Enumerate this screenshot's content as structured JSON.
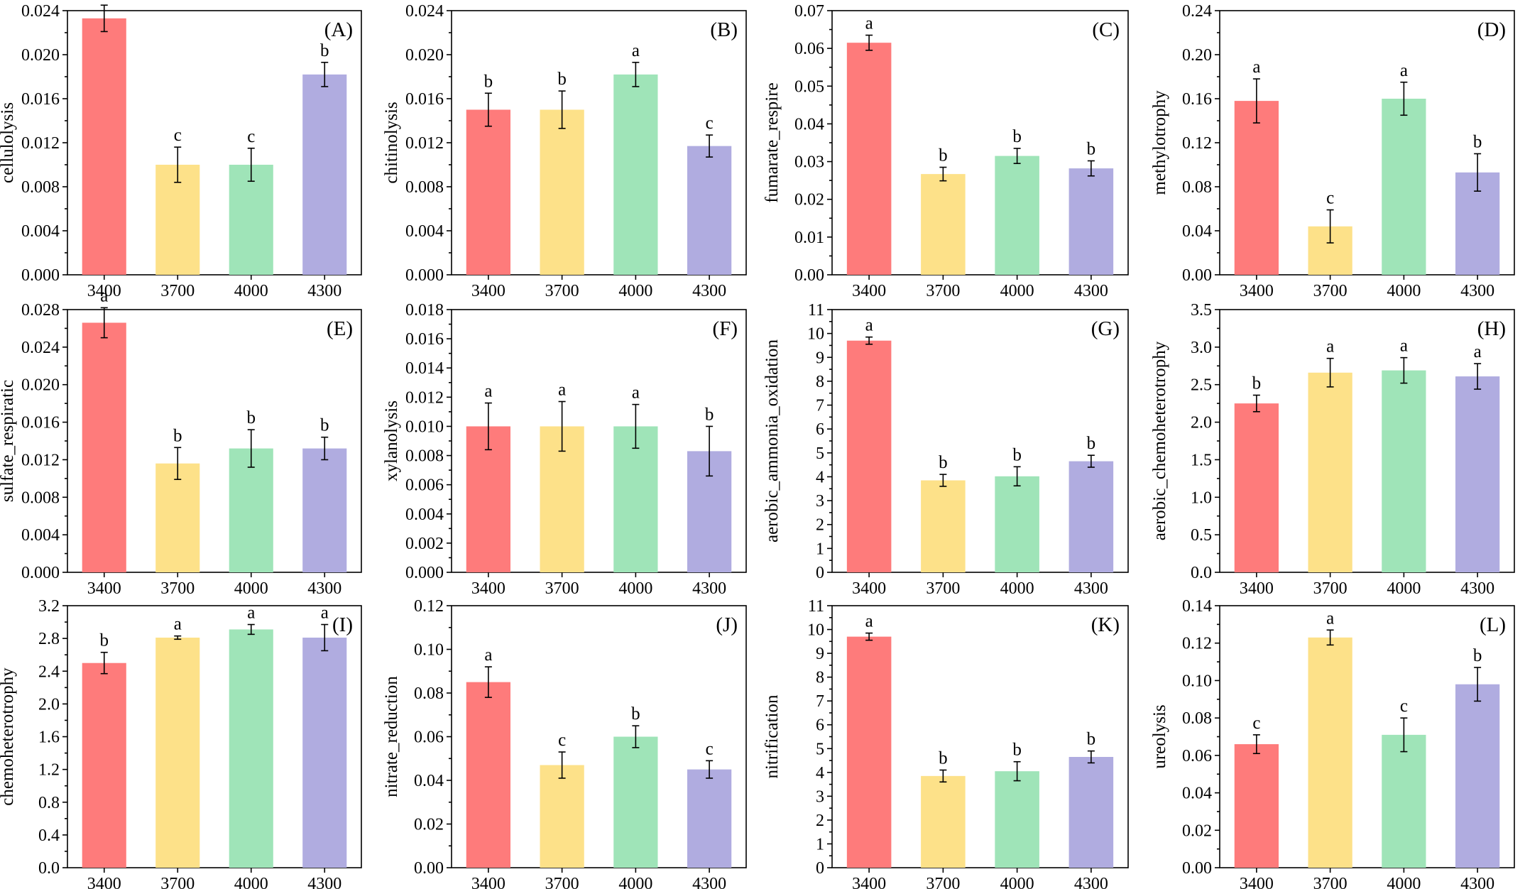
{
  "figure": {
    "categories": [
      "3400",
      "3700",
      "4000",
      "4300"
    ],
    "colors": [
      "#fe7b7b",
      "#fde189",
      "#9fe4b8",
      "#b0ace0"
    ]
  },
  "chart_data": [
    {
      "id": "A",
      "panel_label": "(A)",
      "type": "bar",
      "ylabel": "cellulolysis",
      "categories": [
        "3400",
        "3700",
        "4000",
        "4300"
      ],
      "ylim": [
        0,
        0.024
      ],
      "yticks": [
        "0.000",
        "0.004",
        "0.008",
        "0.012",
        "0.016",
        "0.020",
        "0.024"
      ],
      "values": [
        0.0233,
        0.01,
        0.01,
        0.0182
      ],
      "errors": [
        0.0012,
        0.0016,
        0.0015,
        0.0011
      ],
      "letters": [
        "a",
        "c",
        "c",
        "b"
      ]
    },
    {
      "id": "B",
      "panel_label": "(B)",
      "type": "bar",
      "ylabel": "chitinolysis",
      "categories": [
        "3400",
        "3700",
        "4000",
        "4300"
      ],
      "ylim": [
        0,
        0.024
      ],
      "yticks": [
        "0.000",
        "0.004",
        "0.008",
        "0.012",
        "0.016",
        "0.020",
        "0.024"
      ],
      "values": [
        0.015,
        0.015,
        0.0182,
        0.0117
      ],
      "errors": [
        0.0015,
        0.0017,
        0.0011,
        0.001
      ],
      "letters": [
        "b",
        "b",
        "a",
        "c"
      ]
    },
    {
      "id": "C",
      "panel_label": "(C)",
      "type": "bar",
      "ylabel": "fumarate_respire",
      "categories": [
        "3400",
        "3700",
        "4000",
        "4300"
      ],
      "ylim": [
        0,
        0.07
      ],
      "yticks": [
        "0.00",
        "0.01",
        "0.02",
        "0.03",
        "0.04",
        "0.05",
        "0.06",
        "0.07"
      ],
      "values": [
        0.0615,
        0.0267,
        0.0315,
        0.0282
      ],
      "errors": [
        0.002,
        0.0018,
        0.002,
        0.002
      ],
      "letters": [
        "a",
        "b",
        "b",
        "b"
      ]
    },
    {
      "id": "D",
      "panel_label": "(D)",
      "type": "bar",
      "ylabel": "methylotrophy",
      "categories": [
        "3400",
        "3700",
        "4000",
        "4300"
      ],
      "ylim": [
        0,
        0.24
      ],
      "yticks": [
        "0.00",
        "0.04",
        "0.08",
        "0.12",
        "0.16",
        "0.20",
        "0.24"
      ],
      "values": [
        0.158,
        0.044,
        0.16,
        0.093
      ],
      "errors": [
        0.02,
        0.015,
        0.015,
        0.017
      ],
      "letters": [
        "a",
        "c",
        "a",
        "b"
      ]
    },
    {
      "id": "E",
      "panel_label": "(E)",
      "type": "bar",
      "ylabel": "sulfate_respiratic",
      "categories": [
        "3400",
        "3700",
        "4000",
        "4300"
      ],
      "ylim": [
        0,
        0.028
      ],
      "yticks": [
        "0.000",
        "0.004",
        "0.008",
        "0.012",
        "0.016",
        "0.020",
        "0.024",
        "0.028"
      ],
      "values": [
        0.0266,
        0.0116,
        0.0132,
        0.0132
      ],
      "errors": [
        0.0016,
        0.0017,
        0.002,
        0.0012
      ],
      "letters": [
        "a",
        "b",
        "b",
        "b"
      ]
    },
    {
      "id": "F",
      "panel_label": "(F)",
      "type": "bar",
      "ylabel": "xylanolysis",
      "categories": [
        "3400",
        "3700",
        "4000",
        "4300"
      ],
      "ylim": [
        0,
        0.018
      ],
      "yticks": [
        "0.000",
        "0.002",
        "0.004",
        "0.006",
        "0.008",
        "0.010",
        "0.012",
        "0.014",
        "0.016",
        "0.018"
      ],
      "values": [
        0.01,
        0.01,
        0.01,
        0.0083
      ],
      "errors": [
        0.0016,
        0.0017,
        0.0015,
        0.0017
      ],
      "letters": [
        "a",
        "a",
        "a",
        "b"
      ]
    },
    {
      "id": "G",
      "panel_label": "(G)",
      "type": "bar",
      "ylabel": "aerobic_ammonia_oxidation",
      "categories": [
        "3400",
        "3700",
        "4000",
        "4300"
      ],
      "ylim": [
        0,
        11
      ],
      "yticks": [
        "0",
        "1",
        "2",
        "3",
        "4",
        "5",
        "6",
        "7",
        "8",
        "9",
        "10",
        "11"
      ],
      "values": [
        9.7,
        3.85,
        4.02,
        4.65
      ],
      "errors": [
        0.15,
        0.25,
        0.4,
        0.25
      ],
      "letters": [
        "a",
        "b",
        "b",
        "b"
      ]
    },
    {
      "id": "H",
      "panel_label": "(H)",
      "type": "bar",
      "ylabel": "aerobic_chemoheterotrophy",
      "categories": [
        "3400",
        "3700",
        "4000",
        "4300"
      ],
      "ylim": [
        0,
        3.5
      ],
      "yticks": [
        "0.0",
        "0.5",
        "1.0",
        "1.5",
        "2.0",
        "2.5",
        "3.0",
        "3.5"
      ],
      "values": [
        2.25,
        2.66,
        2.69,
        2.61
      ],
      "errors": [
        0.11,
        0.19,
        0.17,
        0.17
      ],
      "letters": [
        "b",
        "a",
        "a",
        "a"
      ]
    },
    {
      "id": "I",
      "panel_label": "(I)",
      "type": "bar",
      "ylabel": "chemoheterotrophy",
      "categories": [
        "3400",
        "3700",
        "4000",
        "4300"
      ],
      "ylim": [
        0,
        3.2
      ],
      "yticks": [
        "0.0",
        "0.4",
        "0.8",
        "1.2",
        "1.6",
        "2.0",
        "2.4",
        "2.8",
        "3.2"
      ],
      "values": [
        2.5,
        2.81,
        2.91,
        2.81
      ],
      "errors": [
        0.13,
        0.02,
        0.06,
        0.16
      ],
      "letters": [
        "b",
        "a",
        "a",
        "a"
      ]
    },
    {
      "id": "J",
      "panel_label": "(J)",
      "type": "bar",
      "ylabel": "nitrate_reduction",
      "categories": [
        "3400",
        "3700",
        "4000",
        "4300"
      ],
      "ylim": [
        0,
        0.12
      ],
      "yticks": [
        "0.00",
        "0.02",
        "0.04",
        "0.06",
        "0.08",
        "0.10",
        "0.12"
      ],
      "values": [
        0.085,
        0.047,
        0.06,
        0.045
      ],
      "errors": [
        0.007,
        0.006,
        0.005,
        0.004
      ],
      "letters": [
        "a",
        "c",
        "b",
        "c"
      ]
    },
    {
      "id": "K",
      "panel_label": "(K)",
      "type": "bar",
      "ylabel": "nitrification",
      "categories": [
        "3400",
        "3700",
        "4000",
        "4300"
      ],
      "ylim": [
        0,
        11
      ],
      "yticks": [
        "0",
        "1",
        "2",
        "3",
        "4",
        "5",
        "6",
        "7",
        "8",
        "9",
        "10",
        "11"
      ],
      "values": [
        9.7,
        3.85,
        4.05,
        4.65
      ],
      "errors": [
        0.15,
        0.25,
        0.4,
        0.25
      ],
      "letters": [
        "a",
        "b",
        "b",
        "b"
      ]
    },
    {
      "id": "L",
      "panel_label": "(L)",
      "type": "bar",
      "ylabel": "ureolysis",
      "categories": [
        "3400",
        "3700",
        "4000",
        "4300"
      ],
      "ylim": [
        0,
        0.14
      ],
      "yticks": [
        "0.00",
        "0.02",
        "0.04",
        "0.06",
        "0.08",
        "0.10",
        "0.12",
        "0.14"
      ],
      "values": [
        0.066,
        0.123,
        0.071,
        0.098
      ],
      "errors": [
        0.005,
        0.004,
        0.009,
        0.009
      ],
      "letters": [
        "c",
        "a",
        "c",
        "b"
      ]
    }
  ]
}
